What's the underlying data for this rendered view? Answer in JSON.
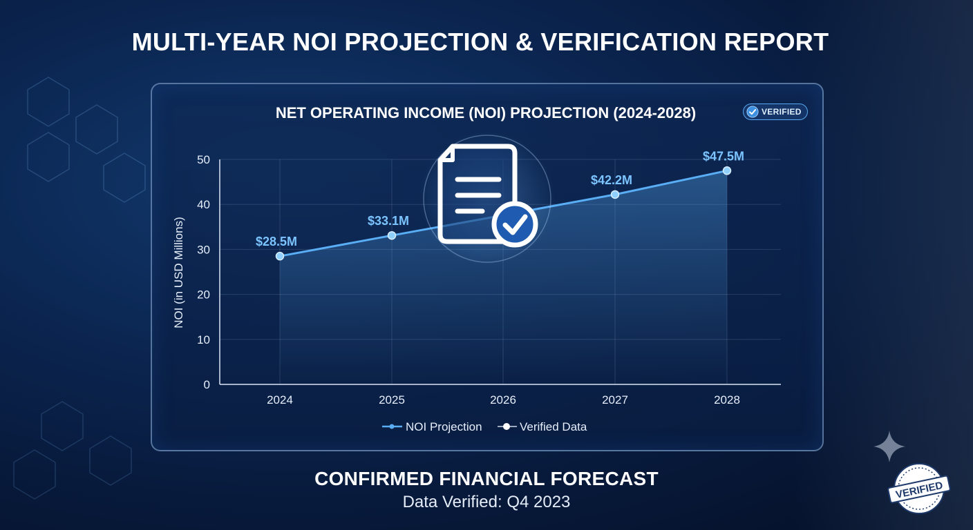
{
  "page": {
    "title": "MULTI-YEAR NOI PROJECTION & VERIFICATION REPORT",
    "footer_title": "CONFIRMED FINANCIAL FORECAST",
    "footer_subtitle": "Data Verified: Q4 2023",
    "stamp_text": "VERIFIED"
  },
  "badge": {
    "label": "VERIFIED",
    "icon": "check-badge-icon"
  },
  "colors": {
    "line": "#5aaef5",
    "label": "#7cc4ff",
    "text": "#ffffff",
    "grid": "rgba(170,195,230,0.18)"
  },
  "chart_data": {
    "type": "line",
    "title": "NET OPERATING INCOME (NOI) PROJECTION (2024-2028)",
    "xlabel": "",
    "ylabel": "NOI (in USD Millions)",
    "categories": [
      "2024",
      "2025",
      "2026",
      "2027",
      "2028"
    ],
    "ylim": [
      0,
      50
    ],
    "yticks": [
      0,
      10,
      20,
      30,
      40,
      50
    ],
    "grid": true,
    "legend_position": "bottom",
    "series": [
      {
        "name": "NOI Projection",
        "values": [
          28.5,
          33.1,
          37.6,
          42.2,
          47.5
        ],
        "point_labels": [
          "$28.5M",
          "$33.1M",
          "",
          "$42.2M",
          "$47.5M"
        ]
      }
    ],
    "legend": [
      "NOI Projection",
      "Verified Data"
    ]
  }
}
